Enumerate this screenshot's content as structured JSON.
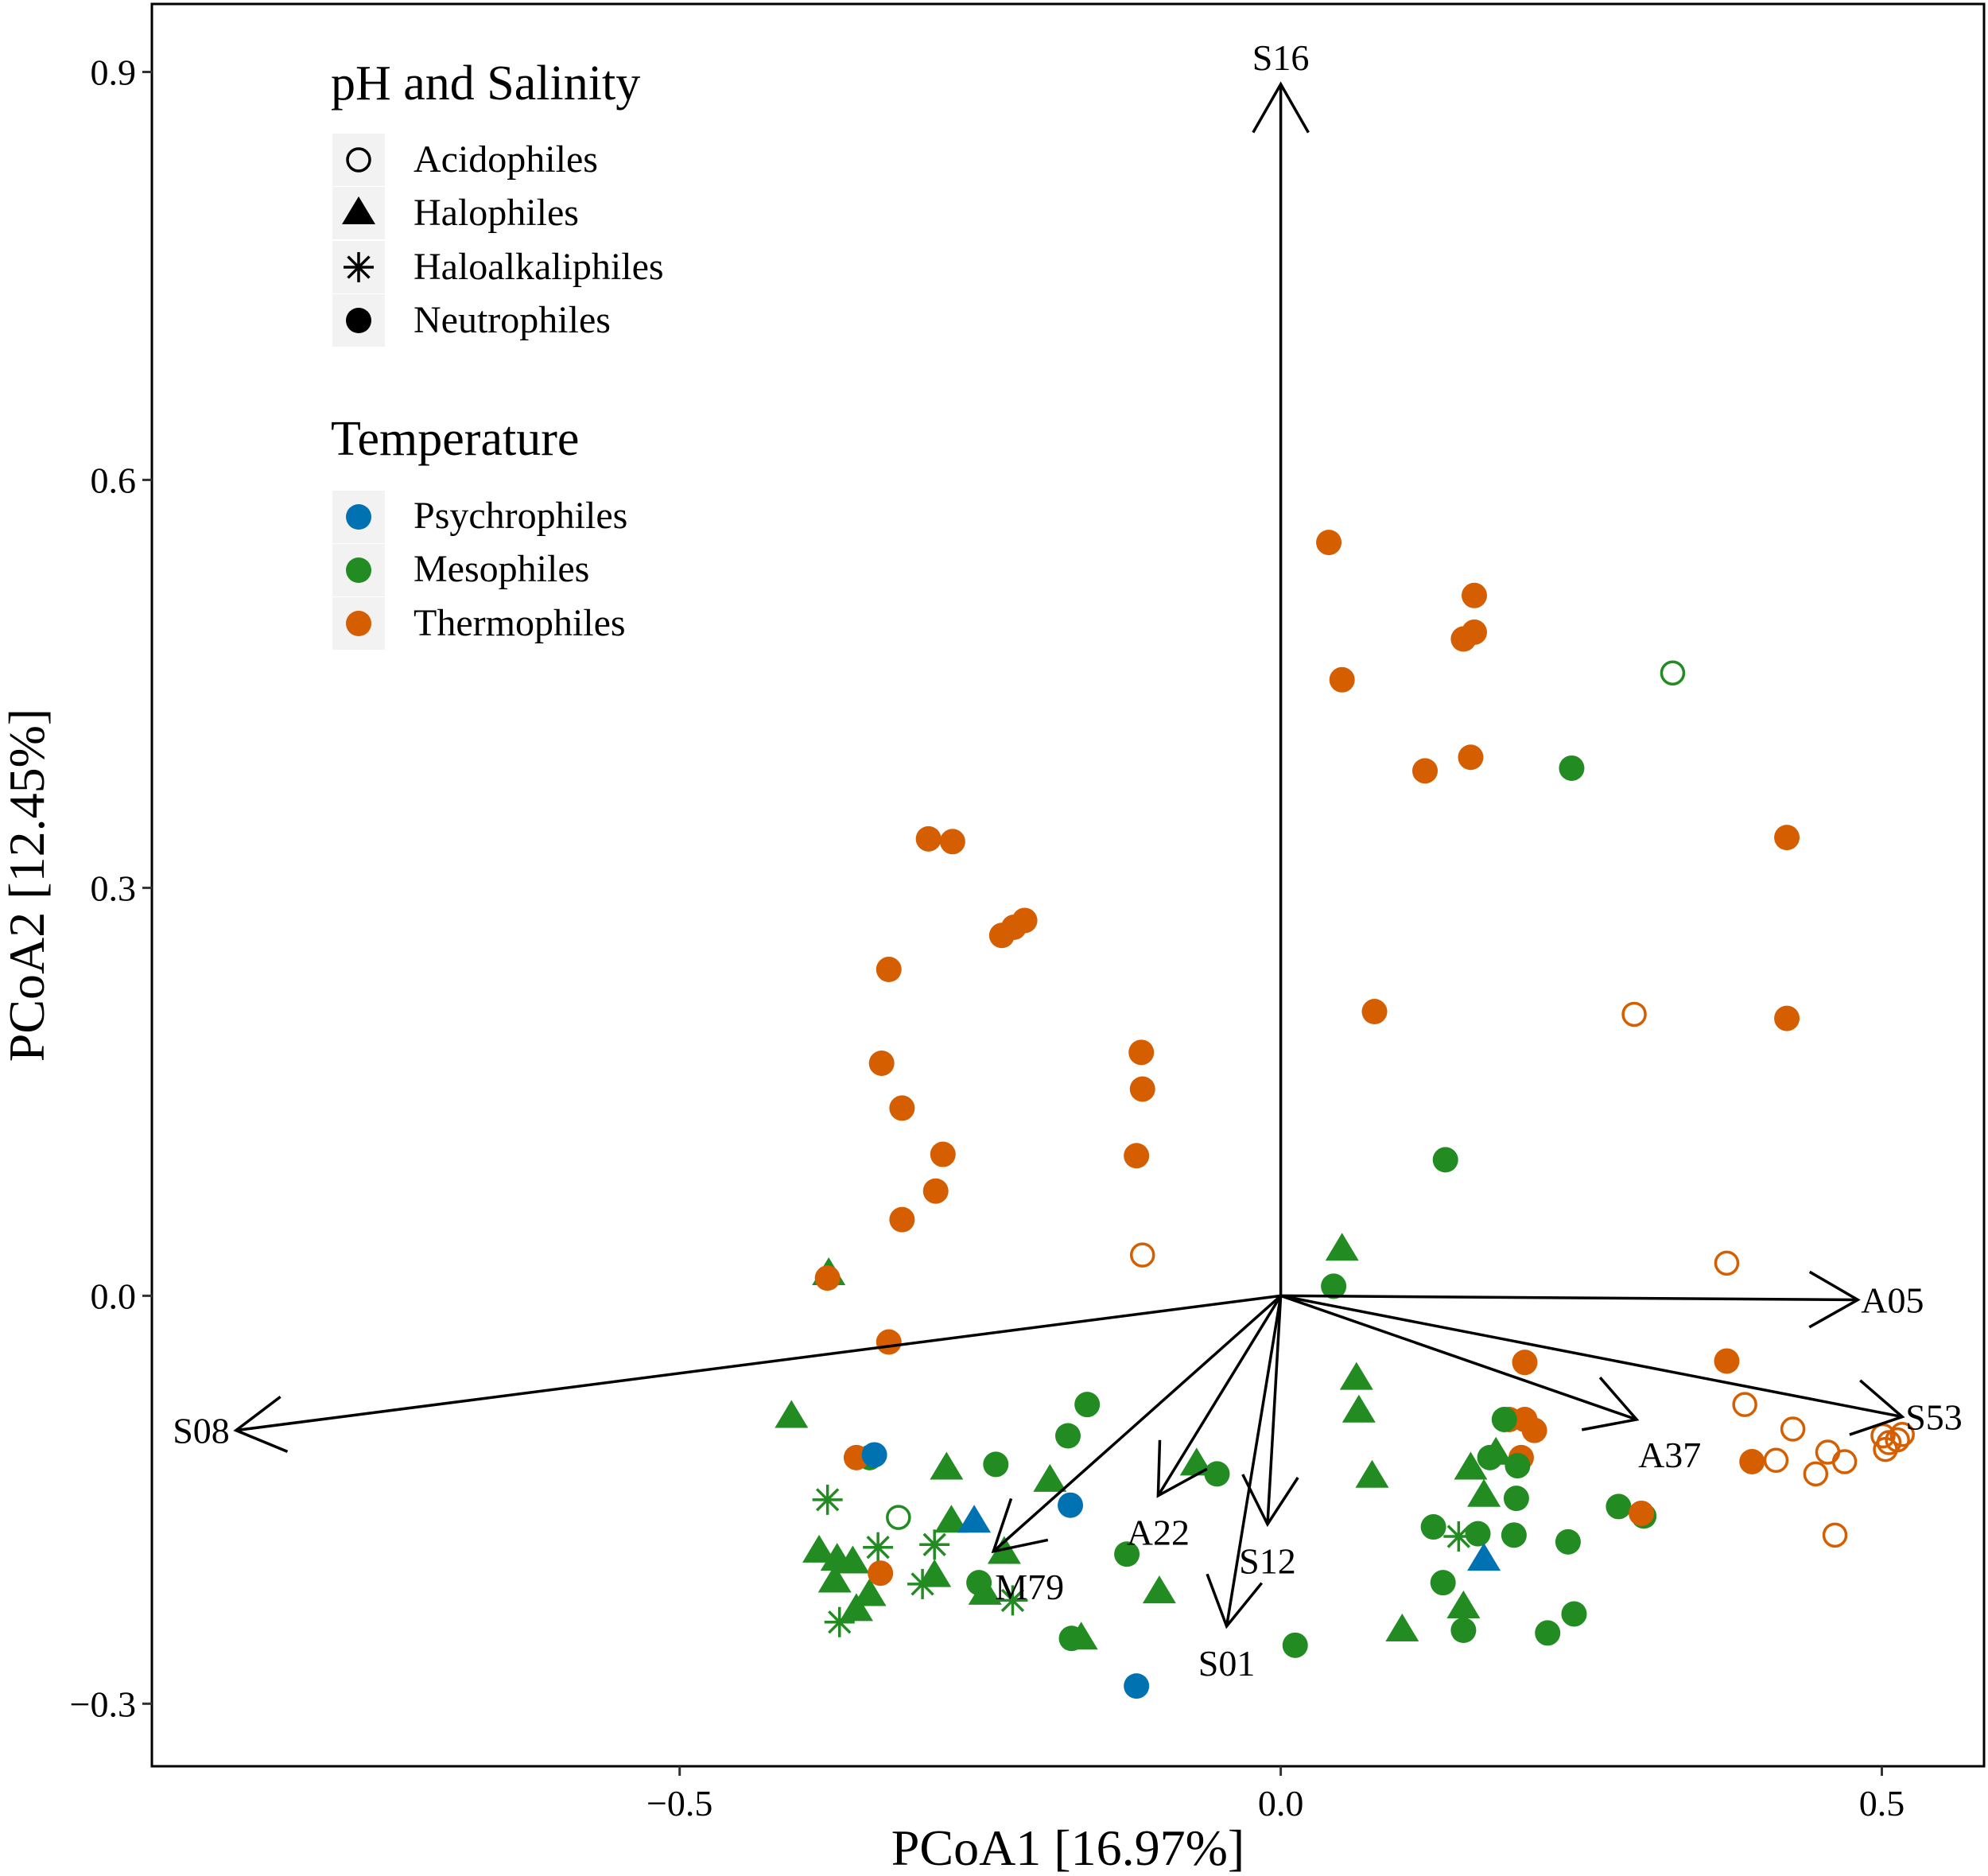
{
  "chart_data": {
    "type": "scatter",
    "xlabel": "PCoA1 [16.97%]",
    "ylabel": "PCoA2 [12.45%]",
    "xlim": [
      -0.939,
      0.585
    ],
    "ylim": [
      -0.346,
      0.95
    ],
    "xticks": [
      -0.5,
      0.0,
      0.5
    ],
    "xtick_labels": [
      "−0.5",
      "0.0",
      "0.5"
    ],
    "yticks": [
      -0.3,
      0.0,
      0.3,
      0.6,
      0.9
    ],
    "ytick_labels": [
      "−0.3",
      "0.0",
      "0.3",
      "0.6",
      "0.9"
    ],
    "grid": false,
    "colors": {
      "Psychrophiles": "#0072B2",
      "Mesophiles": "#228B22",
      "Thermophiles": "#D55E00"
    },
    "legend": {
      "placement": "top-left",
      "shape_title": "pH and Salinity",
      "shapes": [
        {
          "label": "Acidophiles",
          "shape": "open-circle"
        },
        {
          "label": "Halophiles",
          "shape": "triangle"
        },
        {
          "label": "Haloalkaliphiles",
          "shape": "asterisk"
        },
        {
          "label": "Neutrophiles",
          "shape": "filled-circle"
        }
      ],
      "color_title": "Temperature",
      "colors": [
        {
          "label": "Psychrophiles",
          "color": "#0072B2"
        },
        {
          "label": "Mesophiles",
          "color": "#228B22"
        },
        {
          "label": "Thermophiles",
          "color": "#D55E00"
        }
      ]
    },
    "points": [
      {
        "temp": "Thermophiles",
        "ph": "Neutrophiles",
        "xy": [
          [
            0.04,
            0.554
          ],
          [
            0.161,
            0.515
          ],
          [
            0.161,
            0.488
          ],
          [
            0.152,
            0.483
          ],
          [
            0.051,
            0.453
          ],
          [
            0.12,
            0.386
          ],
          [
            0.158,
            0.396
          ],
          [
            0.421,
            0.337
          ],
          [
            0.421,
            0.204
          ],
          [
            0.078,
            0.209
          ],
          [
            -0.293,
            0.336
          ],
          [
            -0.273,
            0.334
          ],
          [
            -0.213,
            0.276
          ],
          [
            -0.222,
            0.271
          ],
          [
            -0.232,
            0.265
          ],
          [
            -0.326,
            0.24
          ],
          [
            -0.332,
            0.171
          ],
          [
            -0.315,
            0.138
          ],
          [
            -0.116,
            0.179
          ],
          [
            -0.115,
            0.152
          ],
          [
            -0.12,
            0.103
          ],
          [
            -0.281,
            0.104
          ],
          [
            -0.287,
            0.077
          ],
          [
            -0.315,
            0.056
          ],
          [
            -0.326,
            -0.034
          ],
          [
            0.203,
            -0.049
          ],
          [
            0.19,
            -0.091
          ],
          [
            0.203,
            -0.091
          ],
          [
            0.211,
            -0.099
          ],
          [
            0.2,
            -0.119
          ],
          [
            0.371,
            -0.048
          ],
          [
            0.392,
            -0.122
          ]
        ]
      },
      {
        "temp": "Thermophiles",
        "ph": "Acidophiles",
        "xy": [
          [
            -0.115,
            0.03
          ],
          [
            0.294,
            0.207
          ],
          [
            0.371,
            0.024
          ],
          [
            0.386,
            -0.08
          ],
          [
            0.426,
            -0.098
          ],
          [
            0.412,
            -0.121
          ],
          [
            0.445,
            -0.131
          ],
          [
            0.455,
            -0.115
          ],
          [
            0.469,
            -0.122
          ],
          [
            0.461,
            -0.176
          ],
          [
            0.501,
            -0.103
          ],
          [
            0.506,
            -0.108
          ],
          [
            0.513,
            -0.106
          ],
          [
            0.503,
            -0.113
          ],
          [
            0.517,
            -0.102
          ]
        ]
      },
      {
        "temp": "Mesophiles",
        "ph": "Acidophiles",
        "xy": [
          [
            0.326,
            0.458
          ],
          [
            -0.318,
            -0.163
          ]
        ]
      },
      {
        "temp": "Mesophiles",
        "ph": "Neutrophiles",
        "xy": [
          [
            0.242,
            0.388
          ],
          [
            0.137,
            0.1
          ],
          [
            0.044,
            0.007
          ],
          [
            -0.161,
            -0.08
          ],
          [
            -0.177,
            -0.103
          ],
          [
            -0.237,
            -0.124
          ],
          [
            -0.053,
            -0.131
          ],
          [
            -0.128,
            -0.19
          ],
          [
            -0.251,
            -0.211
          ],
          [
            -0.174,
            -0.252
          ],
          [
            0.012,
            -0.257
          ],
          [
            0.186,
            -0.091
          ],
          [
            0.174,
            -0.119
          ],
          [
            0.197,
            -0.125
          ],
          [
            0.196,
            -0.149
          ],
          [
            0.127,
            -0.17
          ],
          [
            0.164,
            -0.175
          ],
          [
            0.194,
            -0.176
          ],
          [
            0.239,
            -0.181
          ],
          [
            0.135,
            -0.211
          ],
          [
            0.281,
            -0.155
          ],
          [
            0.302,
            -0.162
          ],
          [
            0.244,
            -0.234
          ],
          [
            0.222,
            -0.248
          ],
          [
            0.152,
            -0.246
          ],
          [
            -0.342,
            -0.119
          ]
        ]
      },
      {
        "temp": "Mesophiles",
        "ph": "Halophiles",
        "xy": [
          [
            0.051,
            0.034
          ],
          [
            -0.376,
            0.016
          ],
          [
            -0.407,
            -0.089
          ],
          [
            0.063,
            -0.061
          ],
          [
            0.065,
            -0.085
          ],
          [
            0.076,
            -0.133
          ],
          [
            -0.278,
            -0.127
          ],
          [
            -0.192,
            -0.136
          ],
          [
            -0.07,
            -0.124
          ],
          [
            -0.274,
            -0.166
          ],
          [
            -0.384,
            -0.188
          ],
          [
            -0.369,
            -0.194
          ],
          [
            -0.356,
            -0.196
          ],
          [
            -0.371,
            -0.21
          ],
          [
            -0.342,
            -0.22
          ],
          [
            -0.353,
            -0.231
          ],
          [
            -0.288,
            -0.206
          ],
          [
            -0.23,
            -0.189
          ],
          [
            -0.246,
            -0.219
          ],
          [
            -0.101,
            -0.218
          ],
          [
            -0.166,
            -0.252
          ],
          [
            0.101,
            -0.246
          ],
          [
            0.152,
            -0.229
          ],
          [
            0.158,
            -0.127
          ],
          [
            0.179,
            -0.116
          ],
          [
            0.169,
            -0.147
          ]
        ]
      },
      {
        "temp": "Mesophiles",
        "ph": "Haloalkaliphiles",
        "xy": [
          [
            -0.377,
            -0.15
          ],
          [
            -0.288,
            -0.183
          ],
          [
            -0.298,
            -0.212
          ],
          [
            -0.223,
            -0.224
          ],
          [
            -0.367,
            -0.24
          ],
          [
            0.148,
            -0.177
          ],
          [
            -0.335,
            -0.185
          ]
        ]
      },
      {
        "temp": "Thermophiles",
        "ph": "Neutrophiles",
        "xy": [
          [
            -0.377,
            0.013
          ],
          [
            -0.353,
            -0.119
          ],
          [
            -0.333,
            -0.204
          ],
          [
            0.3,
            -0.16
          ]
        ]
      },
      {
        "temp": "Psychrophiles",
        "ph": "Neutrophiles",
        "xy": [
          [
            -0.338,
            -0.117
          ],
          [
            -0.175,
            -0.154
          ],
          [
            -0.12,
            -0.287
          ]
        ]
      },
      {
        "temp": "Psychrophiles",
        "ph": "Halophiles",
        "xy": [
          [
            -0.255,
            -0.166
          ],
          [
            0.169,
            -0.194
          ]
        ]
      }
    ],
    "vectors": [
      {
        "label": "S16",
        "end": [
          0.0,
          0.891
        ],
        "anchor": "above"
      },
      {
        "label": "S08",
        "end": [
          -0.869,
          -0.099
        ],
        "anchor": "left"
      },
      {
        "label": "A05",
        "end": [
          0.48,
          -0.003
        ],
        "anchor": "right"
      },
      {
        "label": "S53",
        "end": [
          0.517,
          -0.089
        ],
        "anchor": "right"
      },
      {
        "label": "A37",
        "end": [
          0.296,
          -0.091
        ],
        "anchor": "below-right"
      },
      {
        "label": "A22",
        "end": [
          -0.102,
          -0.147
        ],
        "anchor": "below"
      },
      {
        "label": "M79",
        "end": [
          -0.239,
          -0.188
        ],
        "anchor": "below-right"
      },
      {
        "label": "S12",
        "end": [
          -0.011,
          -0.168
        ],
        "anchor": "below"
      },
      {
        "label": "S01",
        "end": [
          -0.045,
          -0.243
        ],
        "anchor": "below"
      }
    ]
  }
}
